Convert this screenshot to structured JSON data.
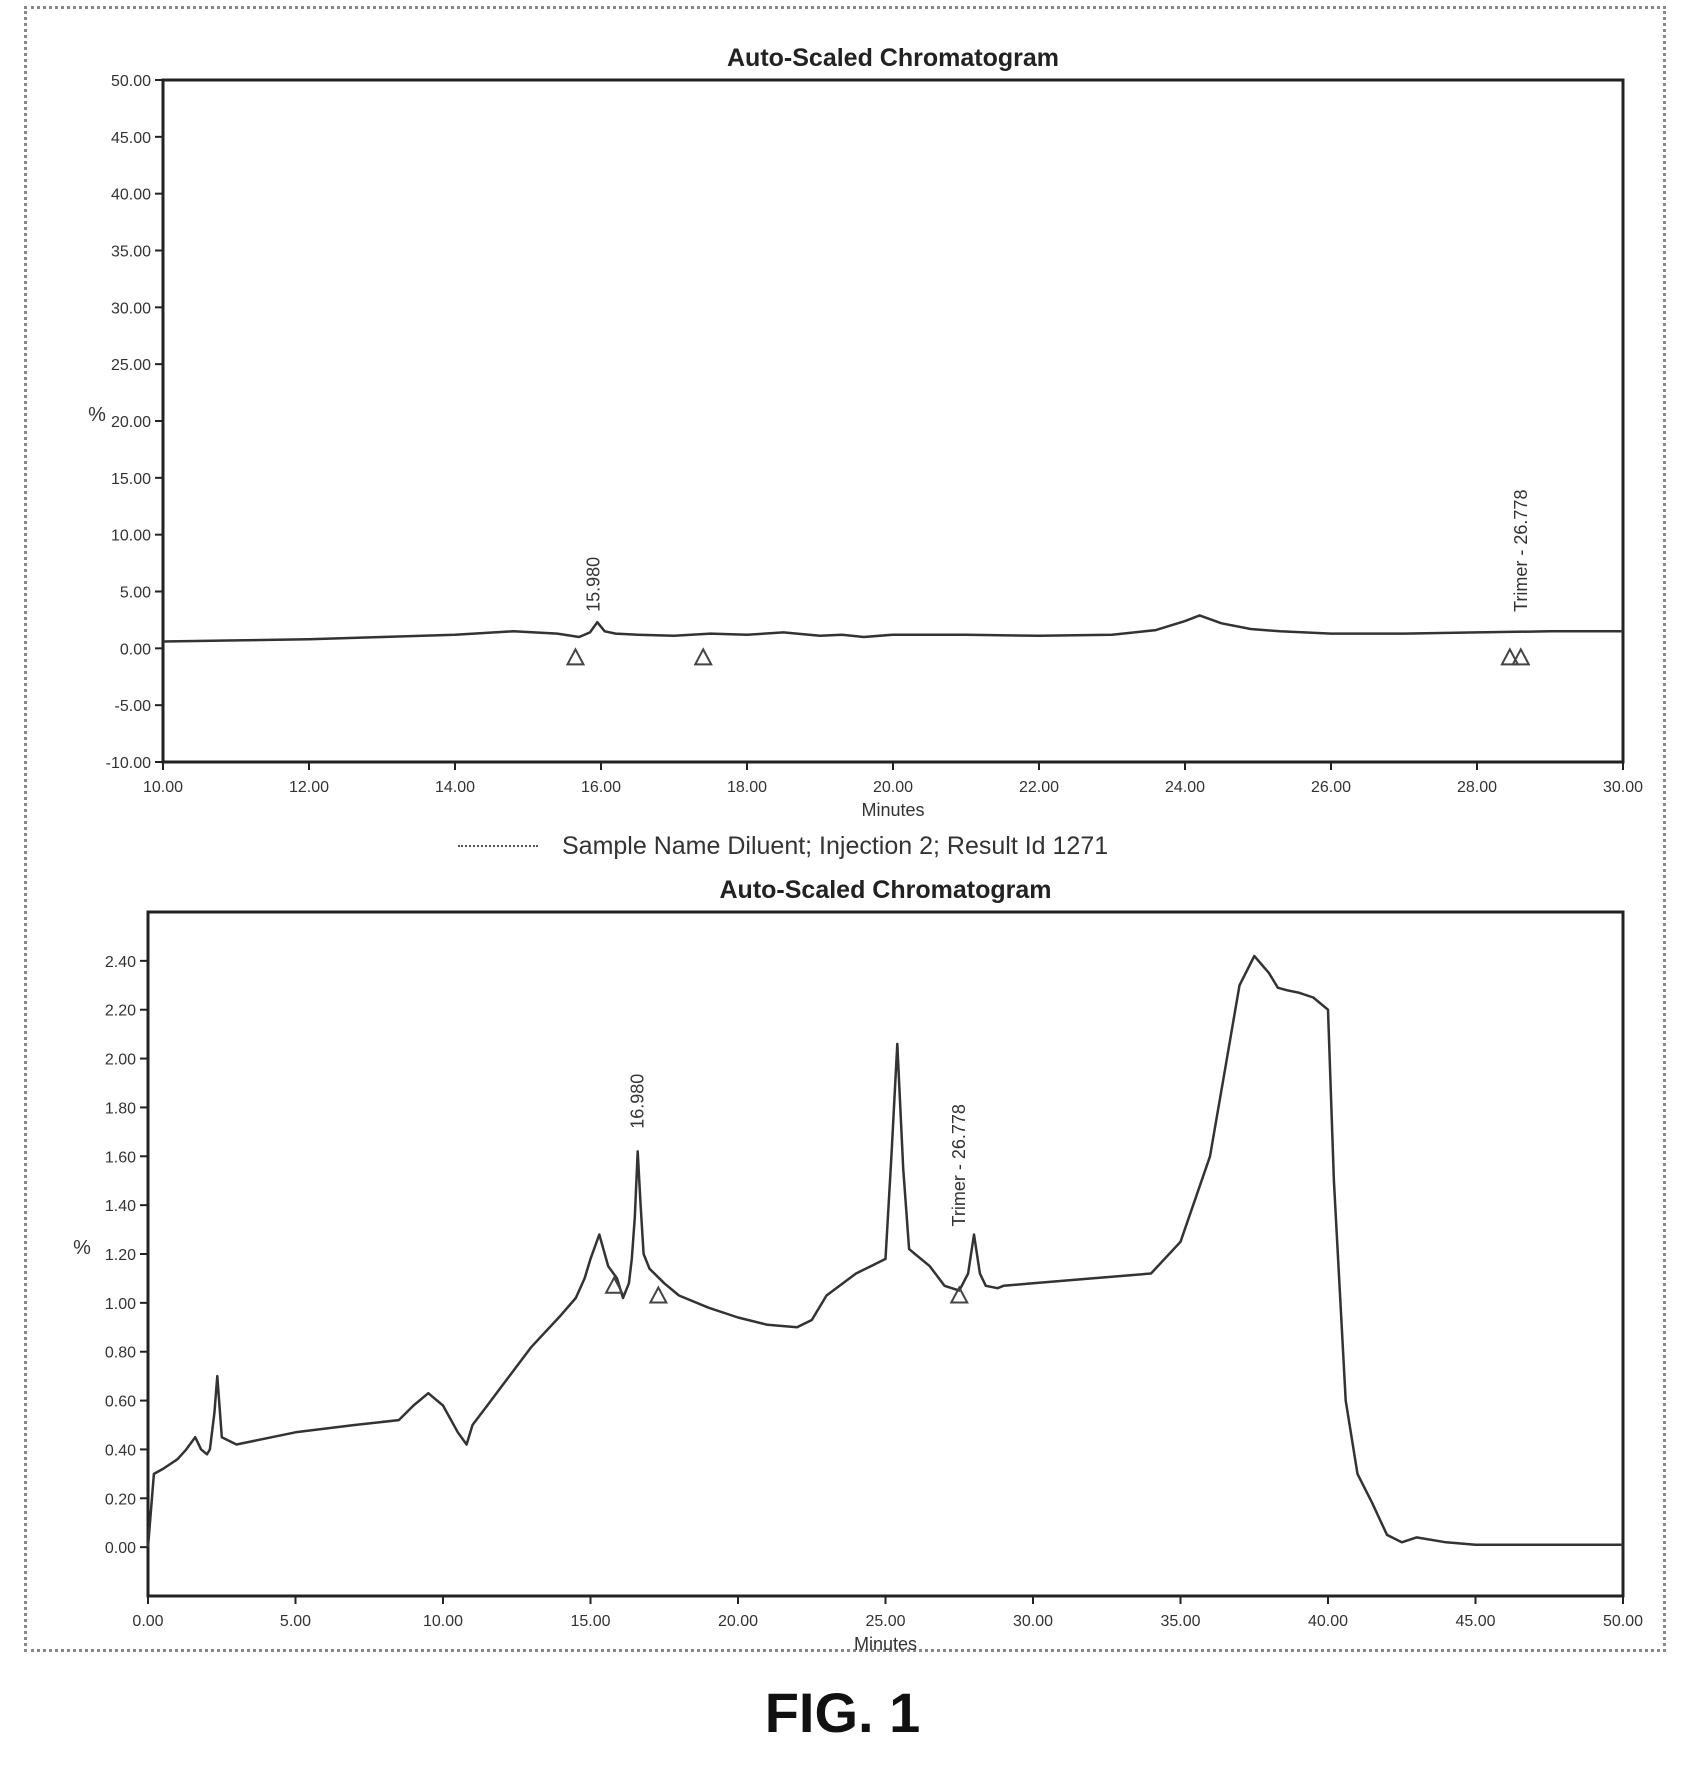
{
  "figure": {
    "caption": "FIG. 1"
  },
  "chart_data": [
    {
      "type": "line",
      "title": "Auto-Scaled Chromatogram",
      "xlabel": "Minutes",
      "ylabel": "%",
      "xlim": [
        10,
        30
      ],
      "ylim": [
        -10,
        50
      ],
      "xticks": [
        10,
        12,
        14,
        16,
        18,
        20,
        22,
        24,
        26,
        28,
        30
      ],
      "xtick_labels": [
        "10.00",
        "12.00",
        "14.00",
        "16.00",
        "18.00",
        "20.00",
        "22.00",
        "24.00",
        "26.00",
        "28.00",
        "30.00"
      ],
      "yticks": [
        -10,
        -5,
        0,
        5,
        10,
        15,
        20,
        25,
        30,
        35,
        40,
        45,
        50
      ],
      "ytick_labels": [
        "-10.00",
        "-5.00",
        "0.00",
        "5.00",
        "10.00",
        "15.00",
        "20.00",
        "25.00",
        "30.00",
        "35.00",
        "40.00",
        "45.00",
        "50.00"
      ],
      "grid": false,
      "series": [
        {
          "x": [
            10.0,
            11.0,
            12.0,
            13.0,
            14.0,
            14.8,
            15.4,
            15.7,
            15.85,
            15.95,
            16.05,
            16.2,
            16.5,
            17.0,
            17.5,
            18.0,
            18.5,
            19.0,
            19.3,
            19.6,
            20.0,
            21.0,
            22.0,
            23.0,
            23.6,
            24.0,
            24.2,
            24.5,
            24.9,
            25.3,
            26.0,
            27.0,
            28.0,
            29.0,
            30.0
          ],
          "y": [
            0.6,
            0.7,
            0.8,
            1.0,
            1.2,
            1.5,
            1.3,
            1.0,
            1.4,
            2.3,
            1.5,
            1.3,
            1.2,
            1.1,
            1.3,
            1.2,
            1.4,
            1.1,
            1.2,
            1.0,
            1.2,
            1.2,
            1.1,
            1.2,
            1.6,
            2.4,
            2.9,
            2.2,
            1.7,
            1.5,
            1.3,
            1.3,
            1.4,
            1.5,
            1.5
          ]
        }
      ],
      "markers": [
        {
          "x": 15.65,
          "y": -0.8,
          "label": ""
        },
        {
          "x": 17.4,
          "y": -0.8,
          "label": ""
        },
        {
          "x": 28.45,
          "y": -0.8,
          "label": ""
        },
        {
          "x": 28.6,
          "y": -0.8,
          "label": ""
        }
      ],
      "peak_labels": [
        {
          "x": 15.9,
          "y": 2.5,
          "label": "15.980"
        },
        {
          "x": 28.6,
          "y": 2.5,
          "label": "Trimer - 26.778"
        }
      ],
      "legend": {
        "position": "below",
        "entries": [
          "Sample Name Diluent; Injection 2; Result Id 1271"
        ]
      }
    },
    {
      "type": "line",
      "title": "Auto-Scaled Chromatogram",
      "xlabel": "Minutes",
      "ylabel": "%",
      "xlim": [
        0,
        50
      ],
      "ylim": [
        -0.2,
        2.6
      ],
      "xticks": [
        0,
        5,
        10,
        15,
        20,
        25,
        30,
        35,
        40,
        45,
        50
      ],
      "xtick_labels": [
        "0.00",
        "5.00",
        "10.00",
        "15.00",
        "20.00",
        "25.00",
        "30.00",
        "35.00",
        "40.00",
        "45.00",
        "50.00"
      ],
      "yticks": [
        0,
        0.2,
        0.4,
        0.6,
        0.8,
        1.0,
        1.2,
        1.4,
        1.6,
        1.8,
        2.0,
        2.2,
        2.4
      ],
      "ytick_labels": [
        "0.00",
        "0.20",
        "0.40",
        "0.60",
        "0.80",
        "1.00",
        "1.20",
        "1.40",
        "1.60",
        "1.80",
        "2.00",
        "2.20",
        "2.40"
      ],
      "grid": false,
      "series": [
        {
          "x": [
            0.0,
            0.2,
            0.5,
            1.0,
            1.3,
            1.6,
            1.8,
            2.0,
            2.1,
            2.25,
            2.35,
            2.5,
            3.0,
            5.0,
            7.0,
            8.5,
            9.0,
            9.5,
            10.0,
            10.5,
            10.8,
            11.0,
            11.5,
            12.0,
            13.0,
            14.0,
            14.5,
            14.8,
            15.0,
            15.3,
            15.6,
            15.9,
            16.1,
            16.3,
            16.4,
            16.5,
            16.6,
            16.7,
            16.8,
            17.0,
            17.5,
            18.0,
            19.0,
            20.0,
            21.0,
            22.0,
            22.5,
            23.0,
            24.0,
            24.5,
            25.0,
            25.2,
            25.4,
            25.6,
            25.8,
            26.0,
            26.5,
            27.0,
            27.5,
            27.8,
            28.0,
            28.2,
            28.4,
            28.8,
            29.0,
            30.0,
            32.0,
            34.0,
            35.0,
            36.0,
            36.5,
            37.0,
            37.5,
            38.0,
            38.3,
            38.6,
            39.0,
            39.5,
            40.0,
            40.2,
            40.6,
            41.0,
            41.5,
            42.0,
            42.5,
            43.0,
            44.0,
            45.0,
            46.0,
            48.0,
            50.0
          ],
          "y": [
            0.0,
            0.3,
            0.32,
            0.36,
            0.4,
            0.45,
            0.4,
            0.38,
            0.4,
            0.55,
            0.7,
            0.45,
            0.42,
            0.47,
            0.5,
            0.52,
            0.58,
            0.63,
            0.58,
            0.47,
            0.42,
            0.5,
            0.58,
            0.66,
            0.82,
            0.95,
            1.02,
            1.1,
            1.18,
            1.28,
            1.15,
            1.1,
            1.02,
            1.08,
            1.18,
            1.35,
            1.62,
            1.4,
            1.2,
            1.14,
            1.08,
            1.03,
            0.98,
            0.94,
            0.91,
            0.9,
            0.93,
            1.03,
            1.12,
            1.15,
            1.18,
            1.6,
            2.06,
            1.55,
            1.22,
            1.2,
            1.15,
            1.07,
            1.05,
            1.12,
            1.28,
            1.12,
            1.07,
            1.06,
            1.07,
            1.08,
            1.1,
            1.12,
            1.25,
            1.6,
            1.95,
            2.3,
            2.42,
            2.35,
            2.29,
            2.28,
            2.27,
            2.25,
            2.2,
            1.5,
            0.6,
            0.3,
            0.18,
            0.05,
            0.02,
            0.04,
            0.02,
            0.01,
            0.01,
            0.01,
            0.01
          ]
        }
      ],
      "markers": [
        {
          "x": 15.8,
          "y": 1.07,
          "label": ""
        },
        {
          "x": 17.3,
          "y": 1.03,
          "label": ""
        },
        {
          "x": 27.5,
          "y": 1.03,
          "label": ""
        }
      ],
      "peak_labels": [
        {
          "x": 16.6,
          "y": 1.68,
          "label": "16.980"
        },
        {
          "x": 27.5,
          "y": 1.28,
          "label": "Trimer - 26.778"
        }
      ]
    }
  ]
}
